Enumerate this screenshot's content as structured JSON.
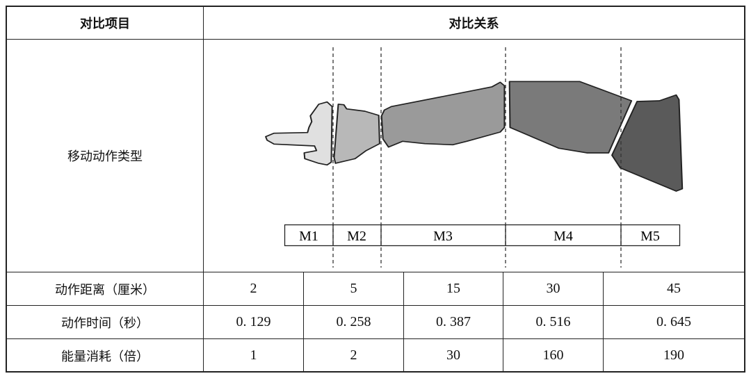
{
  "header": {
    "col1": "对比项目",
    "col2": "对比关系"
  },
  "illustration_row": {
    "label": "移动动作类型",
    "segments": [
      "M1",
      "M2",
      "M3",
      "M4",
      "M5"
    ]
  },
  "rows": [
    {
      "label": "动作距离（厘米）",
      "values": [
        "2",
        "5",
        "15",
        "30",
        "45"
      ]
    },
    {
      "label": "动作时间（秒）",
      "values": [
        "0. 129",
        "0. 258",
        "0. 387",
        "0. 516",
        "0. 645"
      ]
    },
    {
      "label": "能量消耗（倍）",
      "values": [
        "1",
        "2",
        "30",
        "160",
        "190"
      ]
    }
  ],
  "colors": {
    "M1": "#e0e0e0",
    "M2": "#b8b8b8",
    "M3": "#9a9a9a",
    "M4": "#7a7a7a",
    "M5": "#5a5a5a"
  }
}
